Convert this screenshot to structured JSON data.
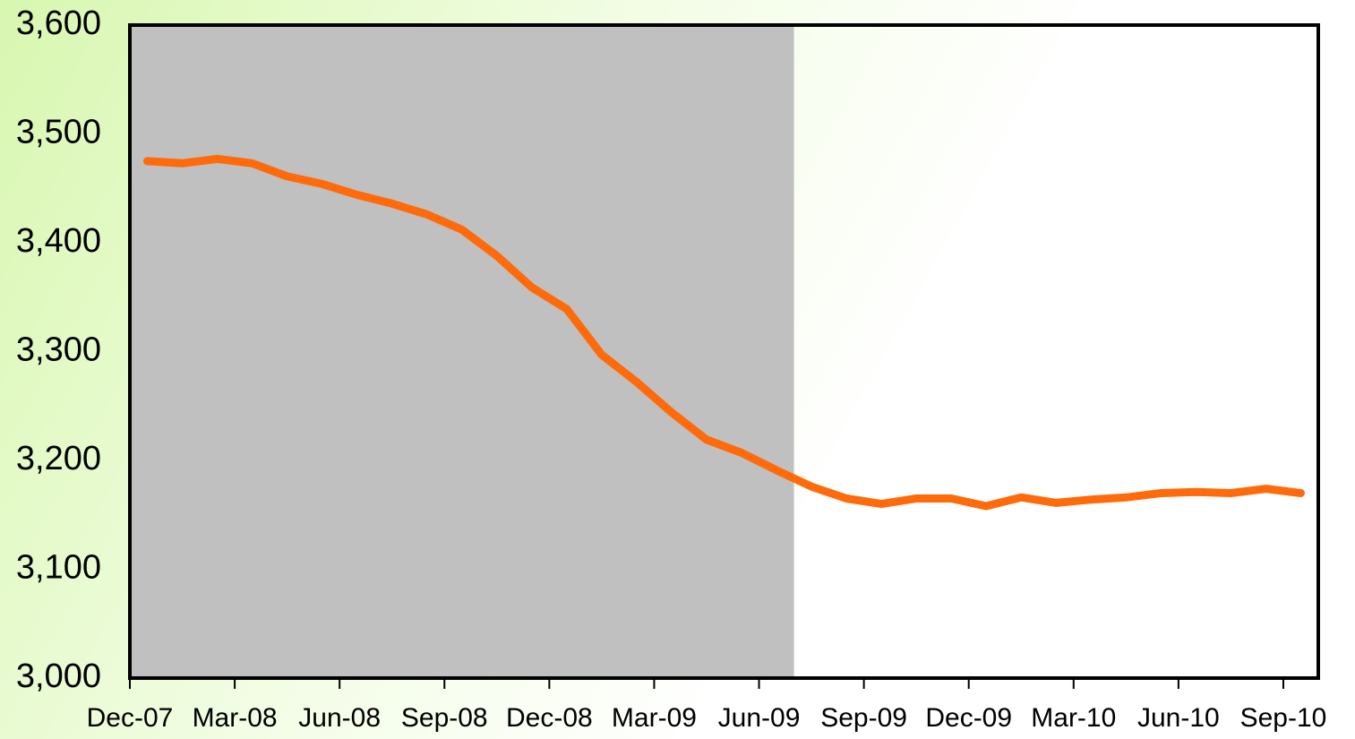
{
  "chart_data": {
    "type": "line",
    "categories": [
      "Dec-07",
      null,
      null,
      "Mar-08",
      null,
      null,
      "Jun-08",
      null,
      null,
      "Sep-08",
      null,
      null,
      "Dec-08",
      null,
      null,
      "Mar-09",
      null,
      null,
      "Jun-09",
      null,
      null,
      "Sep-09",
      null,
      null,
      "Dec-09",
      null,
      null,
      "Mar-10",
      null,
      null,
      "Jun-10",
      null,
      null,
      "Sep-10"
    ],
    "values": [
      3475,
      3473,
      3477,
      3473,
      3461,
      3454,
      3444,
      3436,
      3426,
      3412,
      3388,
      3359,
      3339,
      3297,
      3272,
      3244,
      3219,
      3207,
      3191,
      3176,
      3165,
      3160,
      3165,
      3165,
      3158,
      3166,
      3161,
      3164,
      3166,
      3170,
      3171,
      3170,
      3174,
      3170
    ],
    "color": "#ff6a0a",
    "shaded_range": [
      "Dec-07",
      "Jun-09"
    ],
    "shade_color": "#c0c0c0",
    "ylim": [
      3000,
      3600
    ],
    "yticks": [
      {
        "value": 3000,
        "label": "3,000"
      },
      {
        "value": 3100,
        "label": "3,100"
      },
      {
        "value": 3200,
        "label": "3,200"
      },
      {
        "value": 3300,
        "label": "3,300"
      },
      {
        "value": 3400,
        "label": "3,400"
      },
      {
        "value": 3500,
        "label": "3,500"
      },
      {
        "value": 3600,
        "label": "3,600"
      }
    ],
    "grid": false
  }
}
